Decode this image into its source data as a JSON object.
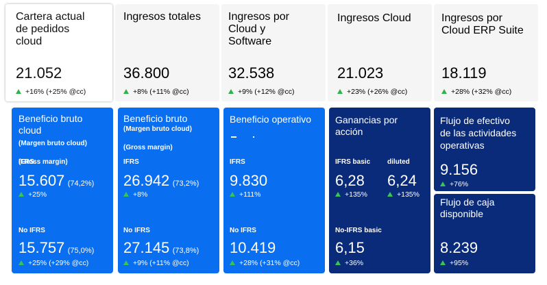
{
  "top": [
    {
      "title_lines": [
        "Cartera actual",
        "de pedidos",
        "cloud"
      ],
      "value": "21.052",
      "change": "+16% (+25% @cc)"
    },
    {
      "title_lines": [
        "Ingresos totales"
      ],
      "value": "36.800",
      "change": "+8% (+11% @cc)"
    },
    {
      "title_lines": [
        "Ingresos por",
        "Cloud y",
        "Software"
      ],
      "value": "32.538",
      "change": "+9% (+12% @cc)"
    },
    {
      "title_lines": [
        "Ingresos Cloud"
      ],
      "value": "21.023",
      "change": "+23% (+26% @cc)"
    },
    {
      "title_lines": [
        "Ingresos por",
        "Cloud ERP Suite"
      ],
      "value": "18.119",
      "change": "+28% (+32% @cc)"
    }
  ],
  "gross_cloud": {
    "title_lines": [
      "Beneficio bruto",
      "cloud"
    ],
    "sub1": "(Margen bruto cloud)",
    "sub2": "(Gross margin)",
    "ifrs_label": "IFRS",
    "ifrs_value": "15.607",
    "ifrs_margin": "(74,2%)",
    "ifrs_change": "+25%",
    "nonifrs_label": "No IFRS",
    "nonifrs_value": "15.757",
    "nonifrs_margin": "(75,0%)",
    "nonifrs_change": "+25% (+29% @cc)"
  },
  "gross": {
    "title": "Beneficio bruto",
    "sub1": "(Margen bruto cloud)",
    "sub2": "(Gross margin)",
    "ifrs_label": "IFRS",
    "ifrs_value": "26.942",
    "ifrs_margin": "(73,2%)",
    "ifrs_change": "+8%",
    "nonifrs_label": "No IFRS",
    "nonifrs_value": "27.145",
    "nonifrs_margin": "(73,8%)",
    "nonifrs_change": "+9% (+11% @cc)"
  },
  "operating": {
    "title": "Beneficio operativo",
    "ifrs_label": "IFRS",
    "ifrs_value": "9.830",
    "ifrs_change": "+111%",
    "nonifrs_label": "No IFRS",
    "nonifrs_value": "10.419",
    "nonifrs_change": "+28% (+31% @cc)"
  },
  "eps": {
    "title_lines": [
      "Ganancias por",
      "acción"
    ],
    "basic_label": "IFRS basic",
    "diluted_label": "diluted",
    "basic_value": "6,28",
    "basic_change": "+135%",
    "diluted_value": "6,24",
    "diluted_change": "+135%",
    "nonifrs_label": "No-IFRS basic",
    "nonifrs_value": "6,15",
    "nonifrs_change": "+36%"
  },
  "cashflow": {
    "title_lines": [
      "Flujo de efectivo",
      "de las actividades",
      "operativas"
    ],
    "value": "9.156",
    "change": "+76%"
  },
  "fcf": {
    "title_lines": [
      "Flujo de caja",
      "disponible"
    ],
    "value": "8.239",
    "change": "+95%"
  },
  "colors": {
    "blue": "#0a6ef0",
    "navy": "#0a2a7a",
    "up": "#2fb24c"
  }
}
